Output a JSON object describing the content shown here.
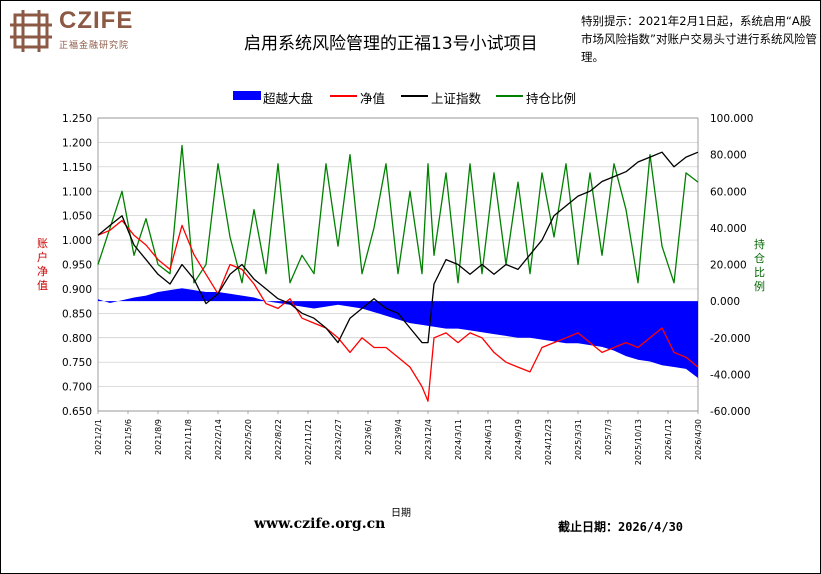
{
  "header": {
    "brand_name": "CZIFE",
    "brand_subtitle": "正福金融研究院",
    "notice": "特别提示：2021年2月1日起，系统启用“A股市场风险指数”对账户交易头寸进行系统风险管理。"
  },
  "footer": {
    "website": "www.czife.org.cn",
    "cutoff": "截止日期：2026/4/30"
  },
  "colors": {
    "excess": "#0000ff",
    "nav": "#ff0000",
    "index": "#000000",
    "position": "#008000",
    "brand": "#8c5a44"
  },
  "chart_data": {
    "type": "line",
    "title": "启用系统风险管理的正福13号小试项目",
    "xlabel": "日期",
    "ylabel_left": "账户净值",
    "ylabel_right": "持仓比例",
    "y_left_range": [
      0.65,
      1.25
    ],
    "y_left_ticks": [
      "1.250",
      "1.200",
      "1.150",
      "1.100",
      "1.050",
      "1.000",
      "0.950",
      "0.900",
      "0.850",
      "0.800",
      "0.750",
      "0.700",
      "0.650"
    ],
    "y_right_range": [
      -60,
      100
    ],
    "y_right_ticks": [
      "100.000",
      "80.000",
      "60.000",
      "40.000",
      "20.000",
      "0.000",
      "-20.000",
      "-40.000",
      "-60.000"
    ],
    "x_range": [
      "2021/2/1",
      "2026/4/30"
    ],
    "x_tick_labels": [
      "2021/2/1",
      "2021/5/6",
      "2021/8/9",
      "2021/11/8",
      "2022/2/14",
      "2022/5/20",
      "2022/8/22",
      "2022/11/21",
      "2023/2/27",
      "2023/6/1",
      "2023/9/4",
      "2023/12/4",
      "2024/3/11",
      "2024/6/13",
      "2024/9/19",
      "2024/12/23",
      "2025/3/31",
      "2025/7/3",
      "2025/10/13",
      "2026/1/12",
      "2026/4/30"
    ],
    "grid": true,
    "legend": "top",
    "series": [
      {
        "name": "超越大盘",
        "type": "area",
        "axis": "right",
        "points": [
          [
            0,
            1
          ],
          [
            2,
            -1
          ],
          [
            4,
            0.5
          ],
          [
            6,
            2
          ],
          [
            8,
            3
          ],
          [
            10,
            5
          ],
          [
            12,
            6
          ],
          [
            14,
            7
          ],
          [
            16,
            6
          ],
          [
            18,
            5
          ],
          [
            20,
            5
          ],
          [
            22,
            4
          ],
          [
            24,
            3
          ],
          [
            26,
            2
          ],
          [
            28,
            0
          ],
          [
            30,
            -1
          ],
          [
            32,
            -2
          ],
          [
            34,
            -3
          ],
          [
            36,
            -4
          ],
          [
            38,
            -3
          ],
          [
            40,
            -2
          ],
          [
            42,
            -3
          ],
          [
            44,
            -4
          ],
          [
            46,
            -6
          ],
          [
            48,
            -8
          ],
          [
            50,
            -10
          ],
          [
            52,
            -12
          ],
          [
            54,
            -13
          ],
          [
            56,
            -14
          ],
          [
            58,
            -15
          ],
          [
            60,
            -15
          ],
          [
            62,
            -16
          ],
          [
            64,
            -17
          ],
          [
            66,
            -18
          ],
          [
            68,
            -19
          ],
          [
            70,
            -20
          ],
          [
            72,
            -20
          ],
          [
            74,
            -21
          ],
          [
            76,
            -22
          ],
          [
            78,
            -23
          ],
          [
            80,
            -23
          ],
          [
            82,
            -24
          ],
          [
            84,
            -25
          ],
          [
            86,
            -27
          ],
          [
            88,
            -30
          ],
          [
            90,
            -32
          ],
          [
            92,
            -33
          ],
          [
            94,
            -35
          ],
          [
            96,
            -36
          ],
          [
            98,
            -37
          ],
          [
            100,
            -42
          ]
        ]
      },
      {
        "name": "净值",
        "type": "line",
        "axis": "left",
        "points": [
          [
            0,
            1.01
          ],
          [
            2,
            1.02
          ],
          [
            4,
            1.04
          ],
          [
            6,
            1.01
          ],
          [
            8,
            0.99
          ],
          [
            10,
            0.96
          ],
          [
            12,
            0.94
          ],
          [
            14,
            1.03
          ],
          [
            16,
            0.97
          ],
          [
            18,
            0.93
          ],
          [
            20,
            0.89
          ],
          [
            22,
            0.95
          ],
          [
            24,
            0.94
          ],
          [
            26,
            0.91
          ],
          [
            28,
            0.87
          ],
          [
            30,
            0.86
          ],
          [
            32,
            0.88
          ],
          [
            34,
            0.84
          ],
          [
            36,
            0.83
          ],
          [
            38,
            0.82
          ],
          [
            40,
            0.8
          ],
          [
            42,
            0.77
          ],
          [
            44,
            0.8
          ],
          [
            46,
            0.78
          ],
          [
            48,
            0.78
          ],
          [
            50,
            0.76
          ],
          [
            52,
            0.74
          ],
          [
            54,
            0.7
          ],
          [
            55,
            0.67
          ],
          [
            56,
            0.8
          ],
          [
            58,
            0.81
          ],
          [
            60,
            0.79
          ],
          [
            62,
            0.81
          ],
          [
            64,
            0.8
          ],
          [
            66,
            0.77
          ],
          [
            68,
            0.75
          ],
          [
            70,
            0.74
          ],
          [
            72,
            0.73
          ],
          [
            74,
            0.78
          ],
          [
            76,
            0.79
          ],
          [
            78,
            0.8
          ],
          [
            80,
            0.81
          ],
          [
            82,
            0.79
          ],
          [
            84,
            0.77
          ],
          [
            86,
            0.78
          ],
          [
            88,
            0.79
          ],
          [
            90,
            0.78
          ],
          [
            92,
            0.8
          ],
          [
            94,
            0.82
          ],
          [
            96,
            0.77
          ],
          [
            98,
            0.76
          ],
          [
            100,
            0.74
          ]
        ]
      },
      {
        "name": "上证指数",
        "type": "line",
        "axis": "left",
        "points": [
          [
            0,
            1.01
          ],
          [
            2,
            1.03
          ],
          [
            4,
            1.05
          ],
          [
            6,
            0.99
          ],
          [
            8,
            0.96
          ],
          [
            10,
            0.93
          ],
          [
            12,
            0.91
          ],
          [
            14,
            0.95
          ],
          [
            16,
            0.92
          ],
          [
            18,
            0.87
          ],
          [
            20,
            0.89
          ],
          [
            22,
            0.93
          ],
          [
            24,
            0.95
          ],
          [
            26,
            0.92
          ],
          [
            28,
            0.9
          ],
          [
            30,
            0.88
          ],
          [
            32,
            0.87
          ],
          [
            34,
            0.85
          ],
          [
            36,
            0.84
          ],
          [
            38,
            0.82
          ],
          [
            40,
            0.79
          ],
          [
            42,
            0.84
          ],
          [
            44,
            0.86
          ],
          [
            46,
            0.88
          ],
          [
            48,
            0.86
          ],
          [
            50,
            0.85
          ],
          [
            52,
            0.82
          ],
          [
            54,
            0.79
          ],
          [
            55,
            0.79
          ],
          [
            56,
            0.91
          ],
          [
            58,
            0.96
          ],
          [
            60,
            0.95
          ],
          [
            62,
            0.93
          ],
          [
            64,
            0.95
          ],
          [
            66,
            0.93
          ],
          [
            68,
            0.95
          ],
          [
            70,
            0.94
          ],
          [
            72,
            0.97
          ],
          [
            74,
            1.0
          ],
          [
            76,
            1.05
          ],
          [
            78,
            1.07
          ],
          [
            80,
            1.09
          ],
          [
            82,
            1.1
          ],
          [
            84,
            1.12
          ],
          [
            86,
            1.13
          ],
          [
            88,
            1.14
          ],
          [
            90,
            1.16
          ],
          [
            92,
            1.17
          ],
          [
            94,
            1.18
          ],
          [
            96,
            1.15
          ],
          [
            98,
            1.17
          ],
          [
            100,
            1.18
          ]
        ]
      },
      {
        "name": "持仓比例",
        "type": "line",
        "axis": "right",
        "points": [
          [
            0,
            20
          ],
          [
            2,
            40
          ],
          [
            4,
            60
          ],
          [
            6,
            25
          ],
          [
            8,
            45
          ],
          [
            10,
            20
          ],
          [
            12,
            15
          ],
          [
            14,
            85
          ],
          [
            16,
            10
          ],
          [
            18,
            20
          ],
          [
            20,
            75
          ],
          [
            22,
            35
          ],
          [
            24,
            10
          ],
          [
            26,
            50
          ],
          [
            28,
            15
          ],
          [
            30,
            75
          ],
          [
            32,
            10
          ],
          [
            34,
            25
          ],
          [
            36,
            15
          ],
          [
            38,
            75
          ],
          [
            40,
            30
          ],
          [
            42,
            80
          ],
          [
            44,
            15
          ],
          [
            46,
            40
          ],
          [
            48,
            75
          ],
          [
            50,
            15
          ],
          [
            52,
            60
          ],
          [
            54,
            15
          ],
          [
            55,
            75
          ],
          [
            56,
            25
          ],
          [
            58,
            70
          ],
          [
            60,
            10
          ],
          [
            62,
            75
          ],
          [
            64,
            15
          ],
          [
            66,
            70
          ],
          [
            68,
            20
          ],
          [
            70,
            65
          ],
          [
            72,
            15
          ],
          [
            74,
            70
          ],
          [
            76,
            35
          ],
          [
            78,
            75
          ],
          [
            80,
            20
          ],
          [
            82,
            70
          ],
          [
            84,
            25
          ],
          [
            86,
            75
          ],
          [
            88,
            50
          ],
          [
            90,
            10
          ],
          [
            92,
            80
          ],
          [
            94,
            30
          ],
          [
            96,
            10
          ],
          [
            98,
            70
          ],
          [
            100,
            65
          ]
        ]
      }
    ]
  }
}
